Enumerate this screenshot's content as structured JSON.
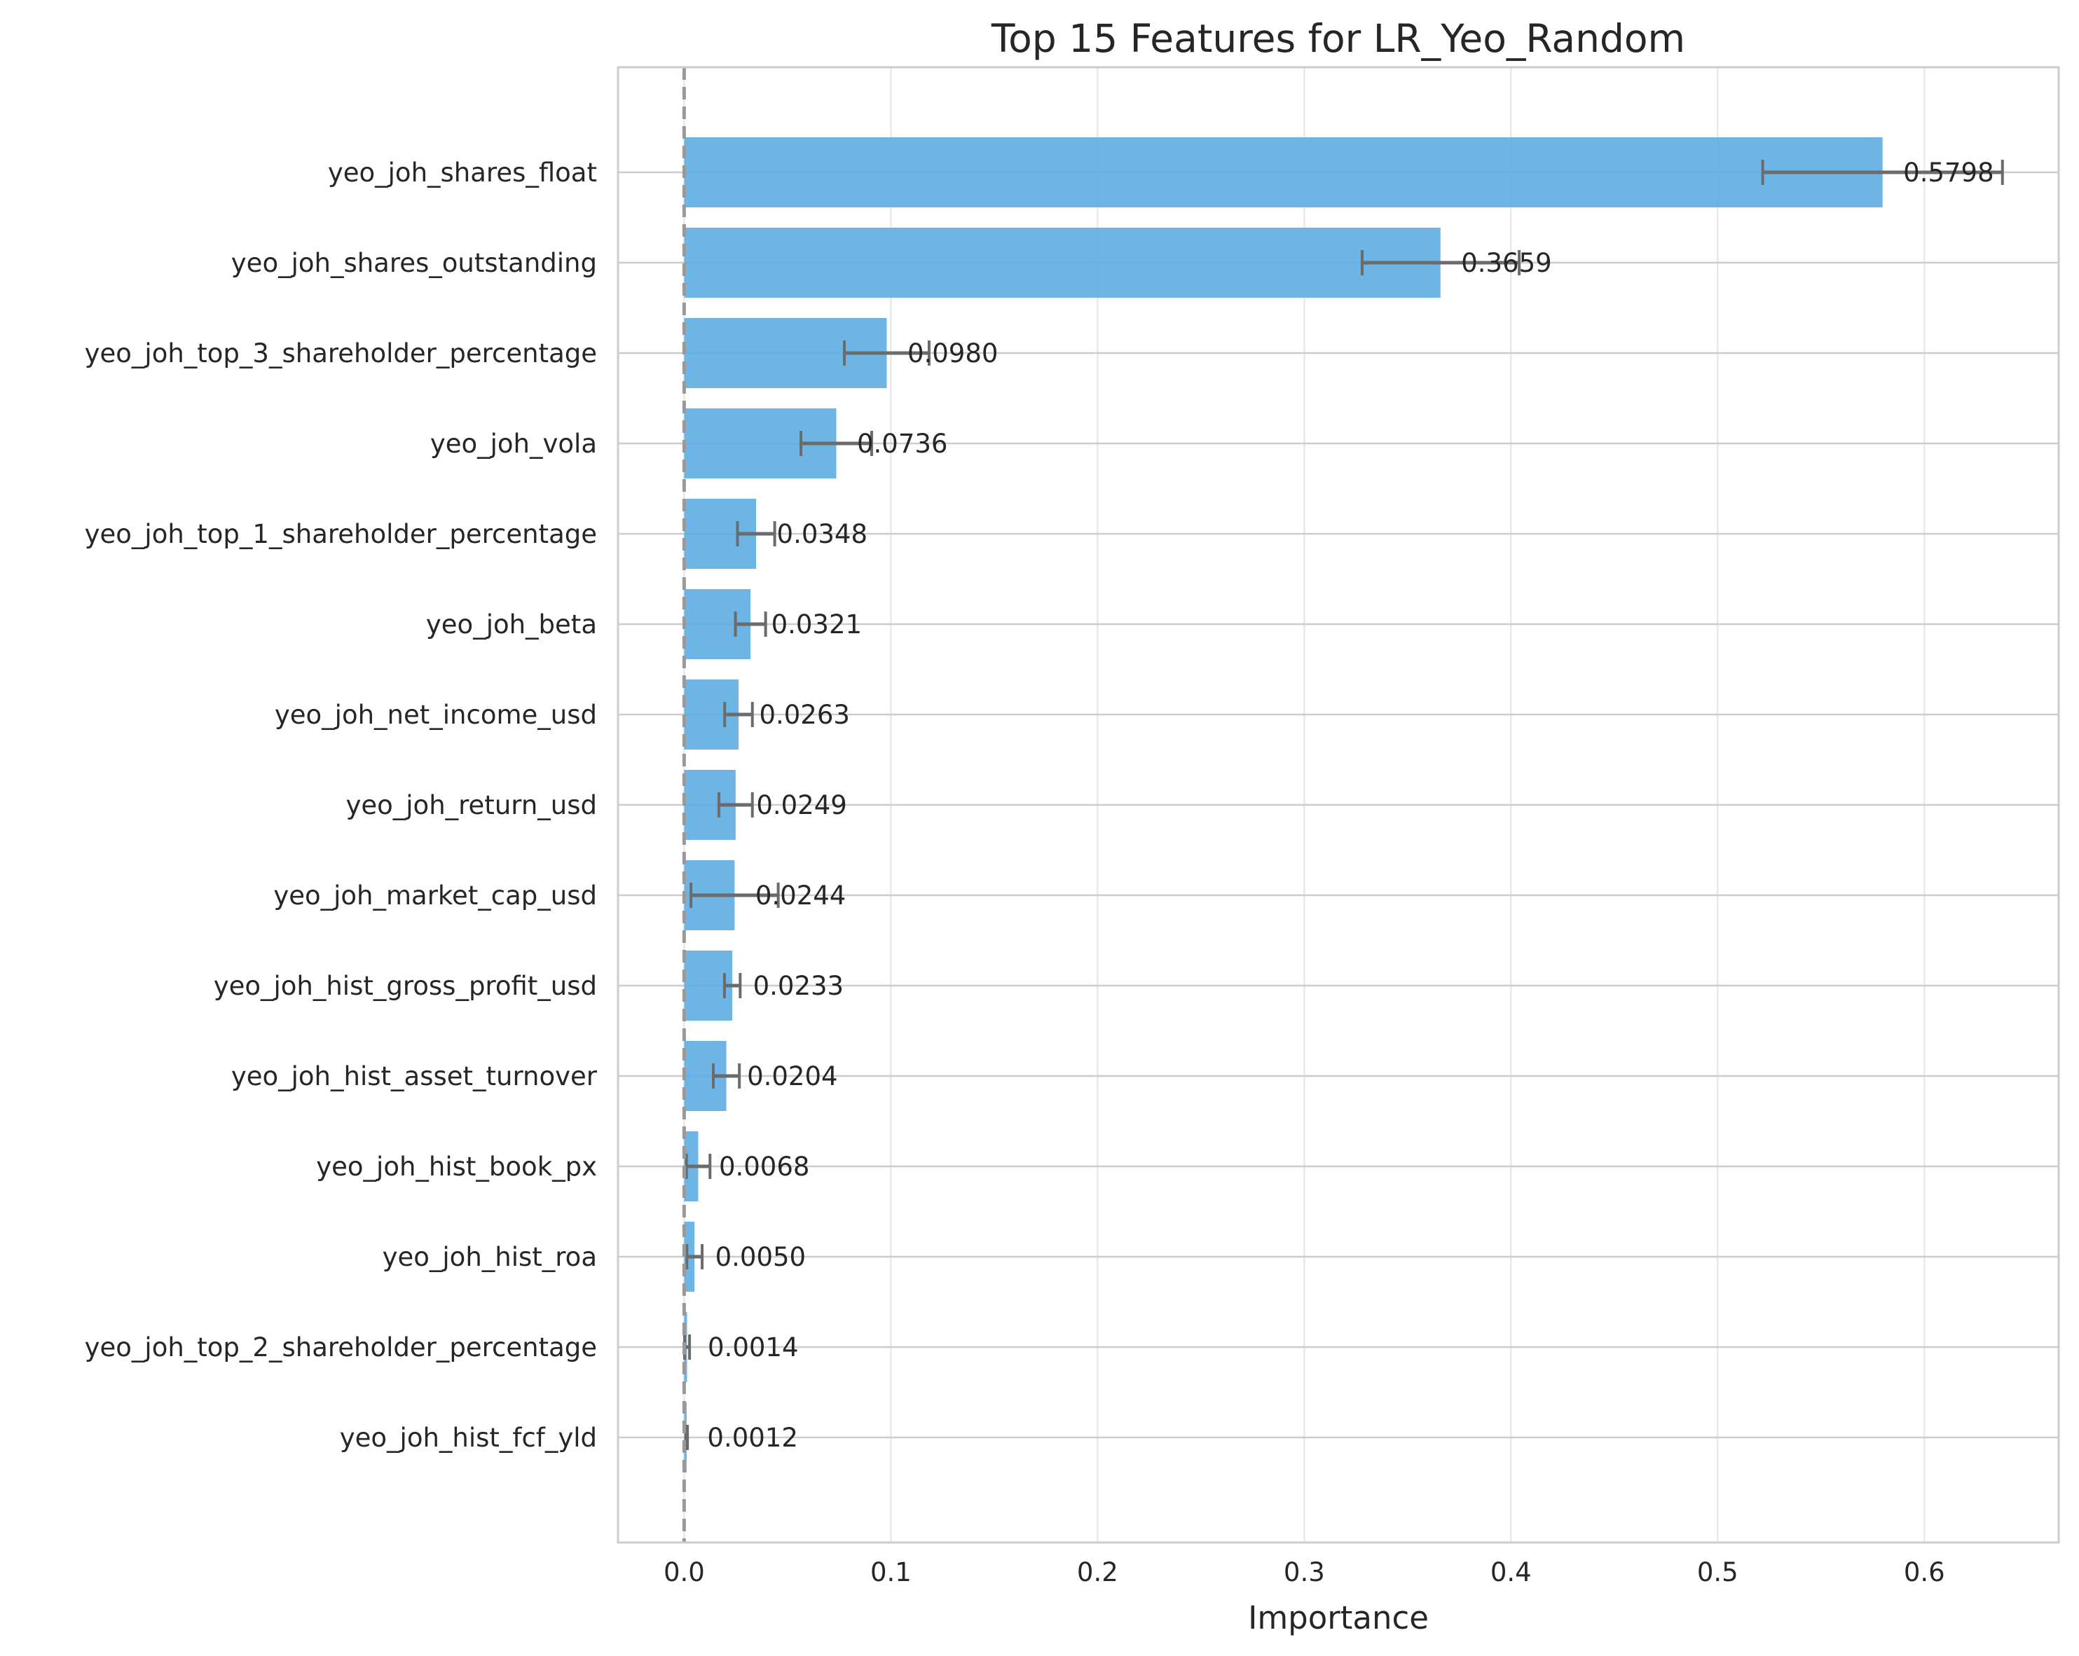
{
  "chart_data": {
    "type": "bar",
    "orientation": "horizontal",
    "title": "Top 15 Features for LR_Yeo_Random",
    "xlabel": "Importance",
    "ylabel": "",
    "xlim": [
      -0.032,
      0.665
    ],
    "xticks": [
      0.0,
      0.1,
      0.2,
      0.3,
      0.4,
      0.5,
      0.6
    ],
    "xtick_labels": [
      "0.0",
      "0.1",
      "0.2",
      "0.3",
      "0.4",
      "0.5",
      "0.6"
    ],
    "grid": true,
    "reference_line": 0.0,
    "bar_color": "#5DADE2",
    "errorbar_color": "#6b6b6b",
    "features": [
      {
        "label": "yeo_joh_shares_float",
        "value": 0.5798,
        "value_label": "0.5798",
        "err_low": 0.5218,
        "err_high": 0.6378
      },
      {
        "label": "yeo_joh_shares_outstanding",
        "value": 0.3659,
        "value_label": "0.3659",
        "err_low": 0.328,
        "err_high": 0.404
      },
      {
        "label": "yeo_joh_top_3_shareholder_percentage",
        "value": 0.098,
        "value_label": "0.0980",
        "err_low": 0.0775,
        "err_high": 0.1185
      },
      {
        "label": "yeo_joh_vola",
        "value": 0.0736,
        "value_label": "0.0736",
        "err_low": 0.0565,
        "err_high": 0.0907
      },
      {
        "label": "yeo_joh_top_1_shareholder_percentage",
        "value": 0.0348,
        "value_label": "0.0348",
        "err_low": 0.0258,
        "err_high": 0.0438
      },
      {
        "label": "yeo_joh_beta",
        "value": 0.0321,
        "value_label": "0.0321",
        "err_low": 0.0248,
        "err_high": 0.0394
      },
      {
        "label": "yeo_joh_net_income_usd",
        "value": 0.0263,
        "value_label": "0.0263",
        "err_low": 0.0196,
        "err_high": 0.033
      },
      {
        "label": "yeo_joh_return_usd",
        "value": 0.0249,
        "value_label": "0.0249",
        "err_low": 0.0168,
        "err_high": 0.033
      },
      {
        "label": "yeo_joh_market_cap_usd",
        "value": 0.0244,
        "value_label": "0.0244",
        "err_low": 0.0033,
        "err_high": 0.0455
      },
      {
        "label": "yeo_joh_hist_gross_profit_usd",
        "value": 0.0233,
        "value_label": "0.0233",
        "err_low": 0.0195,
        "err_high": 0.0271
      },
      {
        "label": "yeo_joh_hist_asset_turnover",
        "value": 0.0204,
        "value_label": "0.0204",
        "err_low": 0.0141,
        "err_high": 0.0267
      },
      {
        "label": "yeo_joh_hist_book_px",
        "value": 0.0068,
        "value_label": "0.0068",
        "err_low": 0.0011,
        "err_high": 0.0125
      },
      {
        "label": "yeo_joh_hist_roa",
        "value": 0.005,
        "value_label": "0.0050",
        "err_low": 0.0013,
        "err_high": 0.0087
      },
      {
        "label": "yeo_joh_top_2_shareholder_percentage",
        "value": 0.0014,
        "value_label": "0.0014",
        "err_low": 0.0002,
        "err_high": 0.0026
      },
      {
        "label": "yeo_joh_hist_fcf_yld",
        "value": 0.0012,
        "value_label": "0.0012",
        "err_low": 0.0008,
        "err_high": 0.0016
      }
    ]
  }
}
